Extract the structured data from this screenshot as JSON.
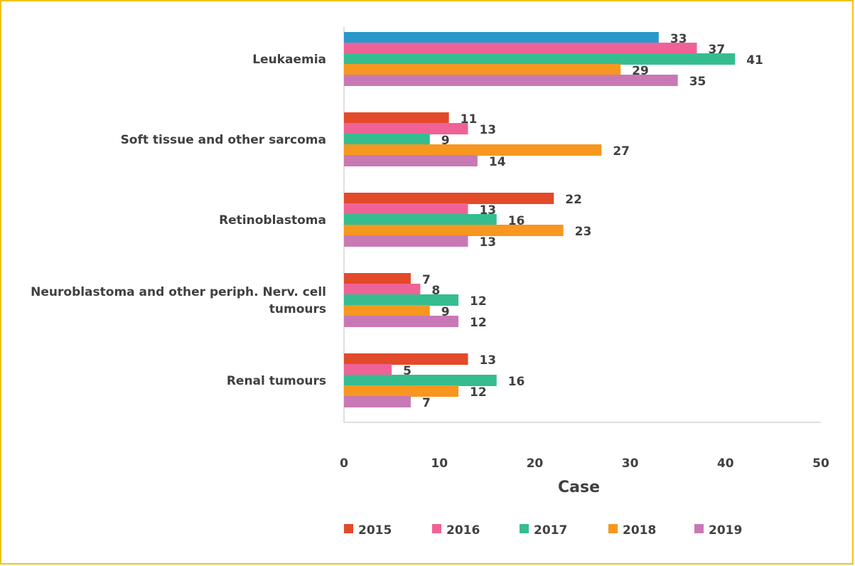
{
  "colors": {
    "border": "#f2c318",
    "axis": "#bfbfbf",
    "text": "#404040",
    "leukaemia_2015": "#2a98c9"
  },
  "chart_data": {
    "type": "bar",
    "orientation": "horizontal",
    "categories": [
      [
        "Leukaemia"
      ],
      [
        "Soft tissue and other  sarcoma"
      ],
      [
        "Retinoblastoma"
      ],
      [
        "Neuroblastoma and other periph. Nerv. cell",
        "tumours"
      ],
      [
        "Renal tumours"
      ]
    ],
    "series": [
      {
        "name": "2015",
        "color": "#e24a2a",
        "values": [
          33,
          11,
          22,
          7,
          13
        ]
      },
      {
        "name": "2016",
        "color": "#ef6297",
        "values": [
          37,
          13,
          13,
          8,
          5
        ]
      },
      {
        "name": "2017",
        "color": "#35bd90",
        "values": [
          41,
          9,
          16,
          12,
          16
        ]
      },
      {
        "name": "2018",
        "color": "#f7971f",
        "values": [
          29,
          27,
          23,
          9,
          12
        ]
      },
      {
        "name": "2019",
        "color": "#c879b5",
        "values": [
          35,
          14,
          13,
          12,
          7
        ]
      }
    ],
    "xlabel": "Case",
    "ylabel": "",
    "xlim": [
      0,
      50
    ],
    "xticks": [
      "0",
      "10",
      "20",
      "30",
      "40",
      "50"
    ],
    "grid": false,
    "legend_position": "bottom",
    "data_labels": true
  }
}
